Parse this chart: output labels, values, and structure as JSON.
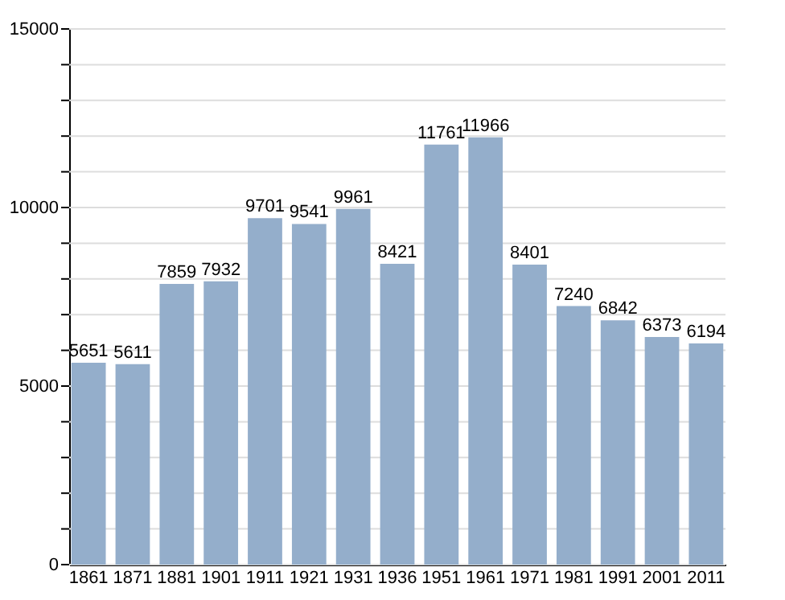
{
  "chart_data": {
    "type": "bar",
    "categories": [
      "1861",
      "1871",
      "1881",
      "1901",
      "1911",
      "1921",
      "1931",
      "1936",
      "1951",
      "1961",
      "1971",
      "1981",
      "1991",
      "2001",
      "2011"
    ],
    "values": [
      5651,
      5611,
      7859,
      7932,
      9701,
      9541,
      9961,
      8421,
      11761,
      11966,
      8401,
      7240,
      6842,
      6373,
      6194
    ],
    "color": "#94aecb",
    "ylim": [
      0,
      15000
    ],
    "yticks": [
      0,
      {
        "value": 1000,
        "label": null
      },
      {
        "value": 2000,
        "label": null
      },
      {
        "value": 3000,
        "label": null
      },
      {
        "value": 4000,
        "label": null
      },
      5000,
      {
        "value": 6000,
        "label": null
      },
      {
        "value": 7000,
        "label": null
      },
      {
        "value": 8000,
        "label": null
      },
      {
        "value": 9000,
        "label": null
      },
      10000,
      {
        "value": 11000,
        "label": null
      },
      {
        "value": 12000,
        "label": null
      },
      {
        "value": 13000,
        "label": null
      },
      {
        "value": 14000,
        "label": null
      },
      15000
    ],
    "grid": true,
    "data_labels": true
  }
}
